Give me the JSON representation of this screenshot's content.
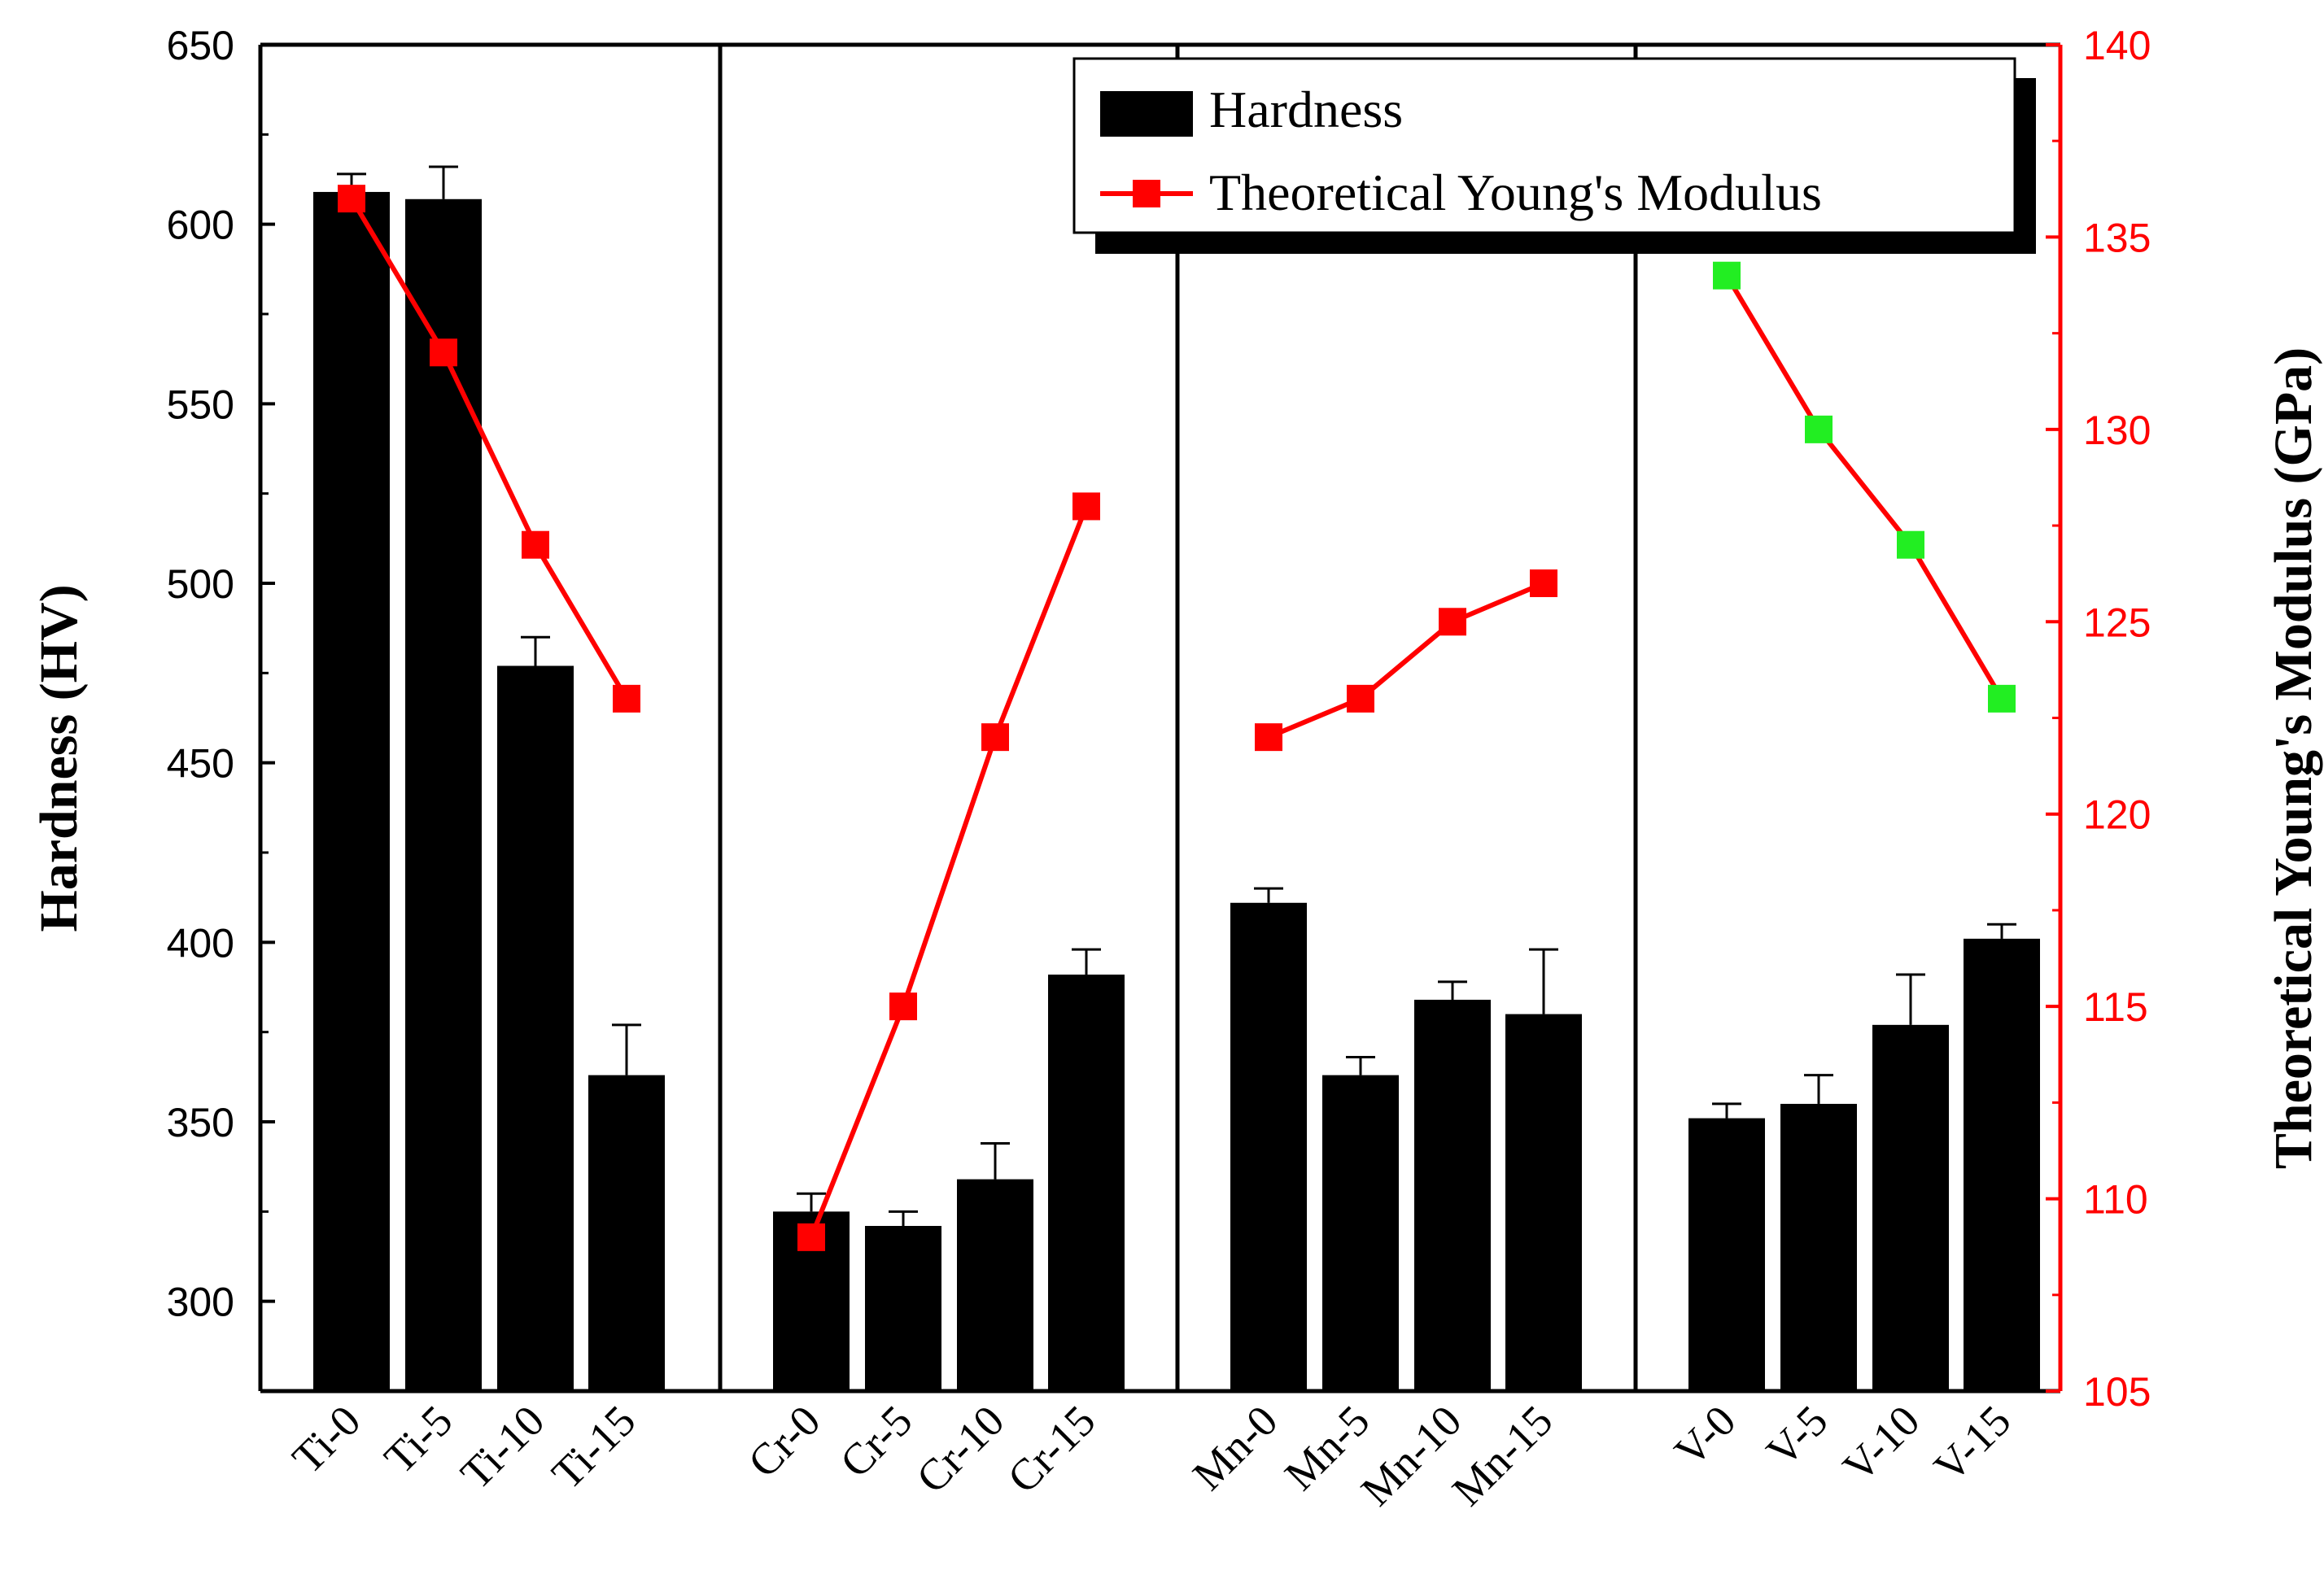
{
  "chart_data": {
    "type": "bar",
    "title": "",
    "xlabel": "",
    "ylabel": "Hardness (HV)",
    "ylabel_right": "Theoretical Young's Modulus (GPa)",
    "ylim": [
      275,
      650
    ],
    "ylim_right": [
      105,
      140
    ],
    "yticks": [
      300,
      350,
      400,
      450,
      500,
      550,
      600,
      650
    ],
    "yticks_right": [
      105,
      110,
      115,
      120,
      125,
      130,
      135,
      140
    ],
    "groups": [
      {
        "name": "Ti",
        "categories": [
          "Ti-0",
          "Ti-5",
          "Ti-10",
          "Ti-15"
        ]
      },
      {
        "name": "Cr",
        "categories": [
          "Cr-0",
          "Cr-5",
          "Cr-10",
          "Cr-15"
        ]
      },
      {
        "name": "Mn",
        "categories": [
          "Mn-0",
          "Mn-5",
          "Mn-10",
          "Mn-15"
        ]
      },
      {
        "name": "V",
        "categories": [
          "V-0",
          "V-5",
          "V-10",
          "V-15"
        ]
      }
    ],
    "series": [
      {
        "name": "Hardness",
        "type": "bar",
        "axis": "left",
        "color": "#000000",
        "values": [
          [
            609,
            607,
            477,
            363
          ],
          [
            325,
            321,
            334,
            391
          ],
          [
            411,
            363,
            384,
            380
          ],
          [
            351,
            355,
            377,
            401
          ]
        ],
        "error_upper": [
          [
            5,
            9,
            8,
            14
          ],
          [
            5,
            4,
            10,
            7
          ],
          [
            4,
            5,
            5,
            18
          ],
          [
            4,
            8,
            14,
            4
          ]
        ]
      },
      {
        "name": "Theoretical Young's Modulus",
        "type": "line",
        "axis": "right",
        "color": "#ff0000",
        "values": [
          [
            136,
            132,
            127,
            123
          ],
          [
            109,
            115,
            122,
            128
          ],
          [
            122,
            123,
            125,
            126
          ],
          [
            134,
            130,
            127,
            123
          ]
        ],
        "marker_colors": [
          "#ff0000",
          "#ff0000",
          "#ff0000",
          "#22ee22"
        ]
      }
    ],
    "legend": {
      "position": "top-right",
      "entries": [
        "Hardness",
        "Theoretical Young's Modulus"
      ]
    },
    "colors": {
      "axis_right": "#ff0000",
      "axis_left": "#000000"
    }
  }
}
